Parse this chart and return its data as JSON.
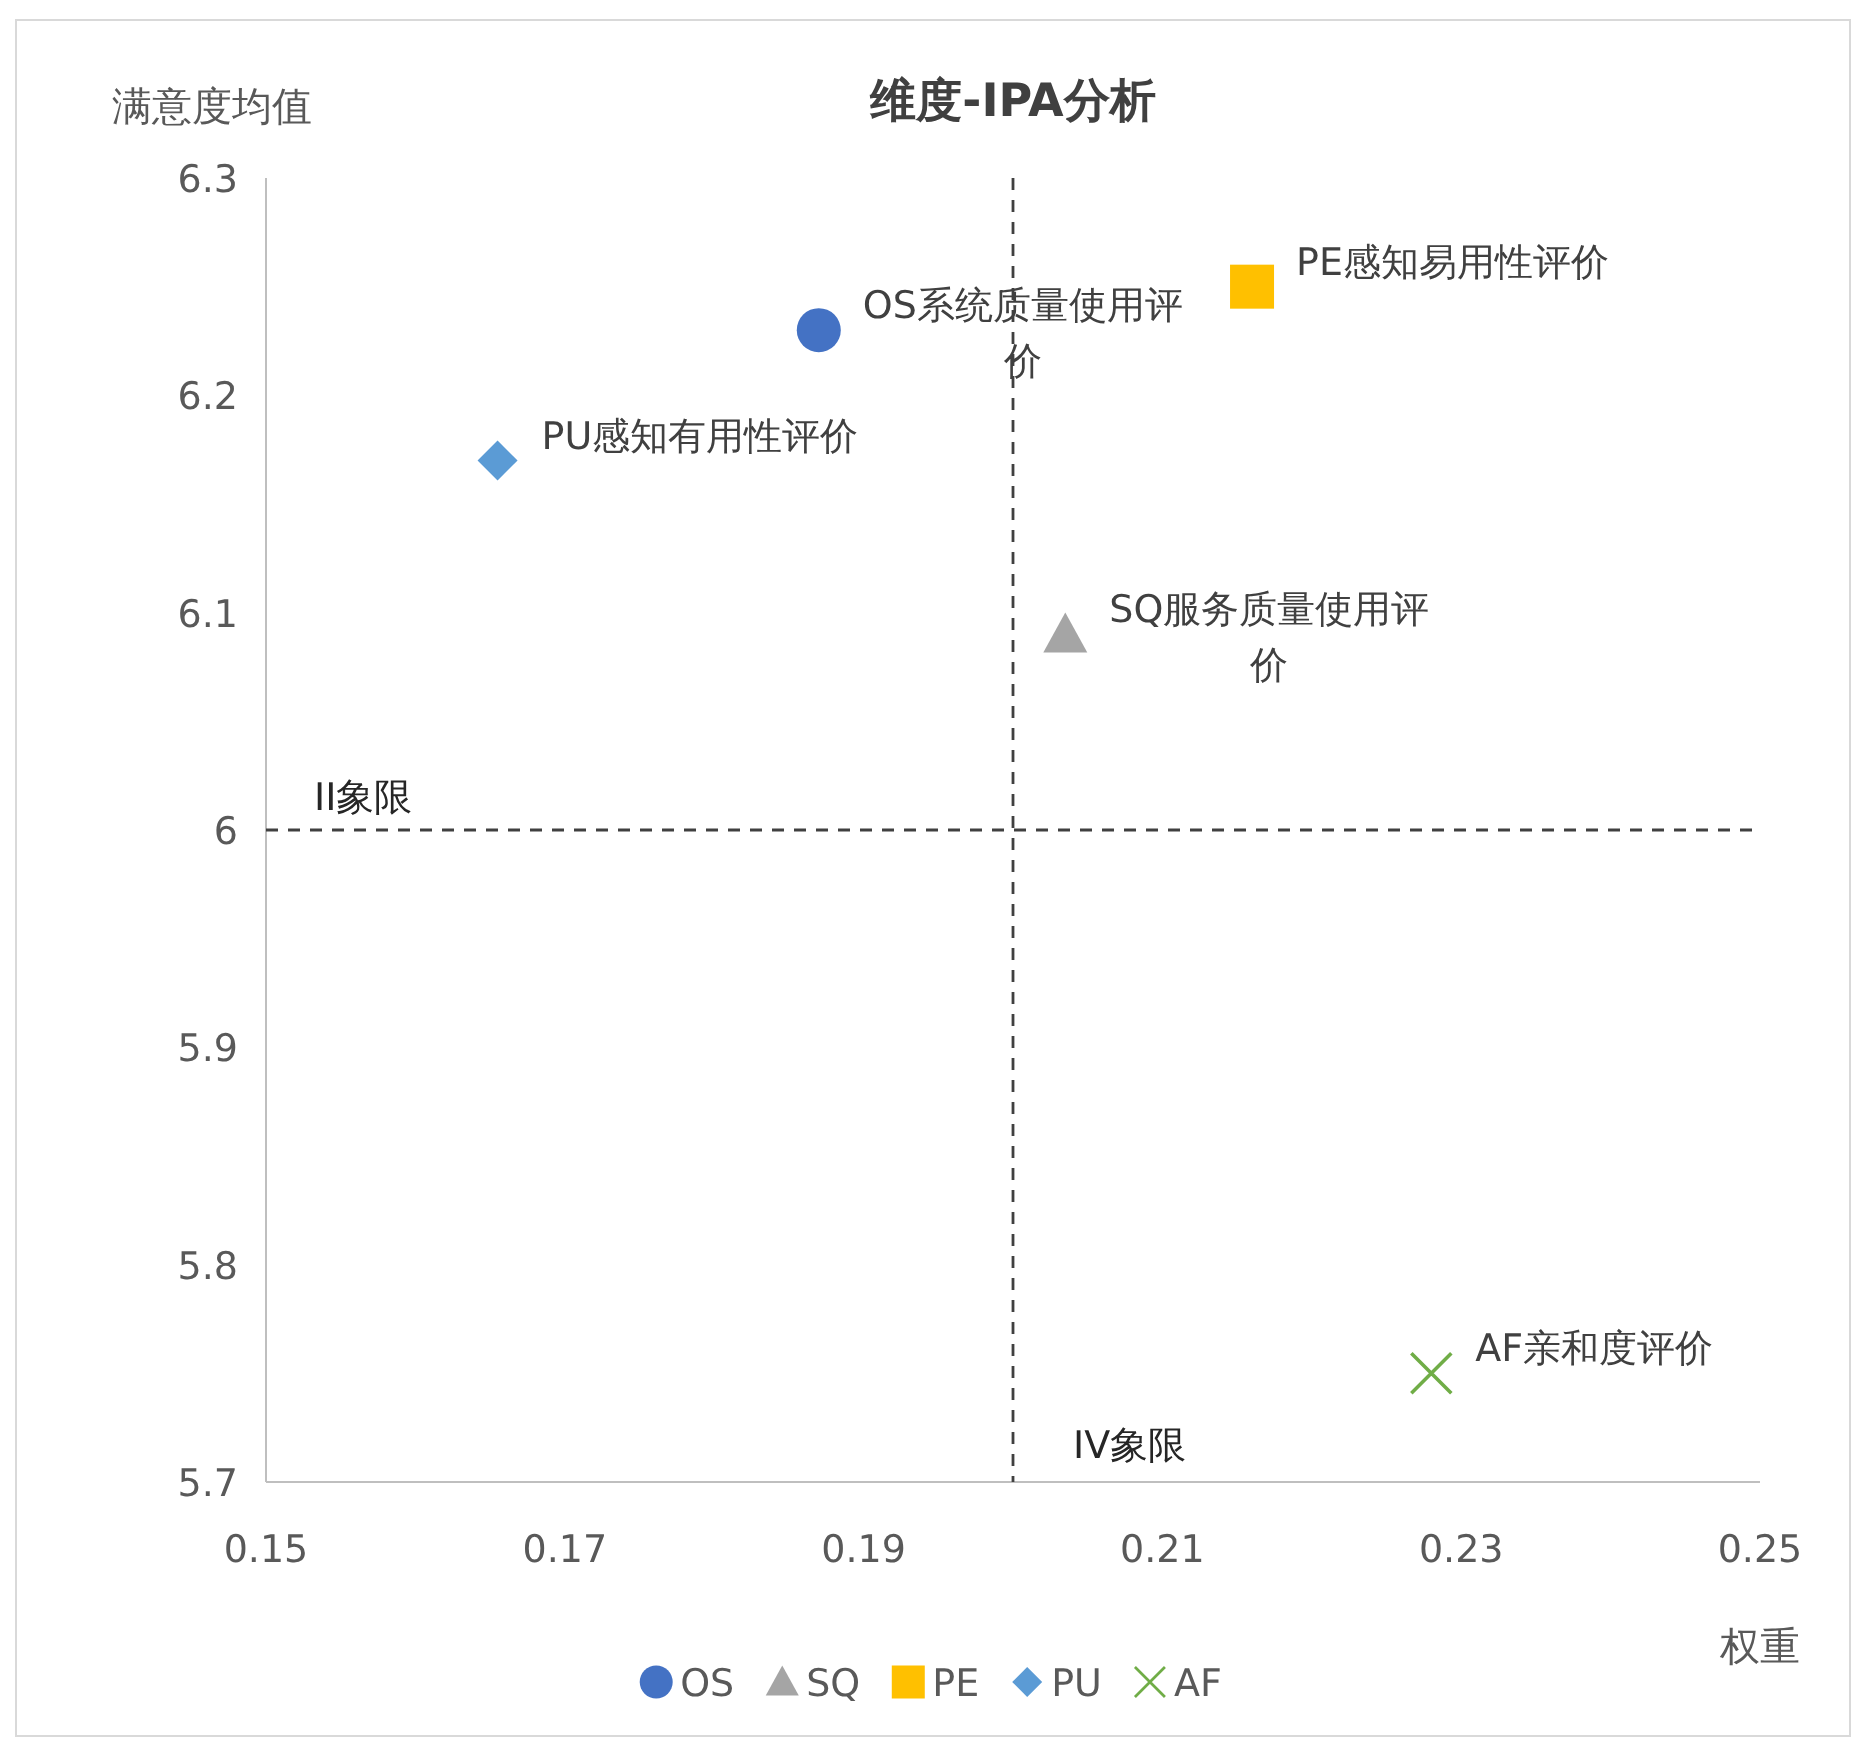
{
  "chart_data": {
    "type": "scatter",
    "title": "维度-IPA分析",
    "xlabel": "权重",
    "ylabel": "满意度均值",
    "xlim": [
      0.15,
      0.25
    ],
    "xticks": [
      0.15,
      0.17,
      0.19,
      0.21,
      0.23,
      0.25
    ],
    "ylim": [
      5.7,
      6.3
    ],
    "yticks": [
      5.7,
      5.8,
      5.9,
      6,
      6.1,
      6.2,
      6.3
    ],
    "legend": "bottom",
    "series": [
      {
        "name": "OS",
        "color": "#4472c4",
        "marker": "circle",
        "x": [
          0.187
        ],
        "values": [
          6.23
        ]
      },
      {
        "name": "SQ",
        "color": "#a5a5a5",
        "marker": "triangle",
        "x": [
          0.2035
        ],
        "values": [
          6.09
        ]
      },
      {
        "name": "PE",
        "color": "#ffc000",
        "marker": "square",
        "x": [
          0.216
        ],
        "values": [
          6.25
        ]
      },
      {
        "name": "PU",
        "color": "#5b9bd5",
        "marker": "diamond",
        "x": [
          0.1655
        ],
        "values": [
          6.17
        ]
      },
      {
        "name": "AF",
        "color": "#70ad47",
        "marker": "cross",
        "x": [
          0.228
        ],
        "values": [
          5.75
        ]
      }
    ],
    "ref_lines": [
      {
        "axis": "x",
        "value": 0.2,
        "line_style": "dashed",
        "color": "#404040"
      },
      {
        "axis": "y",
        "value": 6,
        "line_style": "dashed",
        "color": "#404040"
      }
    ],
    "annotations": [
      {
        "text": "OS系统质量使用评价",
        "x": 0.187,
        "y": 6.23
      },
      {
        "text": "SQ服务质量使用评价",
        "x": 0.2035,
        "y": 6.09
      },
      {
        "text": "PE感知易用性评价",
        "x": 0.216,
        "y": 6.25
      },
      {
        "text": "PU感知有用性评价",
        "x": 0.1655,
        "y": 6.17
      },
      {
        "text": "AF亲和度评价",
        "x": 0.228,
        "y": 5.75
      },
      "II象限",
      "IV象限"
    ]
  }
}
